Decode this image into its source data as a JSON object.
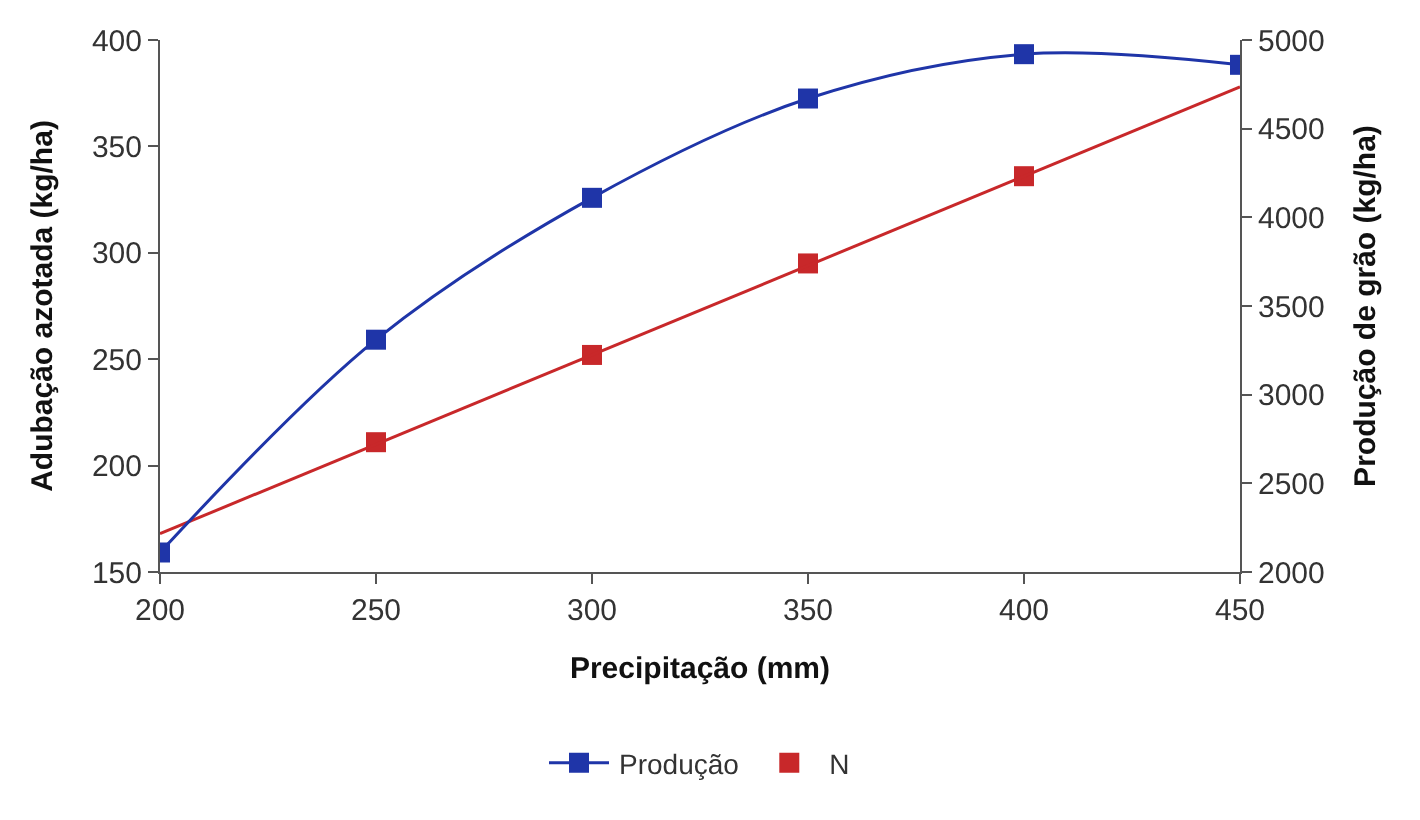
{
  "chart_data": {
    "type": "line",
    "xlabel": "Precipitação (mm)",
    "ylabel": "Adubação azotada (kg/ha)",
    "y2label": "Produção de grão (kg/ha)",
    "xlim": [
      200,
      450
    ],
    "xticks": [
      200,
      250,
      300,
      350,
      400,
      450
    ],
    "ylim": [
      150,
      400
    ],
    "yticks": [
      150,
      200,
      250,
      300,
      350,
      400
    ],
    "y2lim": [
      2000,
      5000
    ],
    "y2ticks": [
      2000,
      2500,
      3000,
      3500,
      4000,
      4500,
      5000
    ],
    "legend": "bottom",
    "marker": "square",
    "line_style": "solid",
    "series": [
      {
        "name": "Produção",
        "color": "#1f35a8",
        "axis": "y2",
        "x": [
          200,
          250,
          300,
          350,
          400,
          450
        ],
        "values": [
          2110,
          3310,
          4110,
          4670,
          4920,
          4860
        ]
      },
      {
        "name": "N",
        "color": "#c8282a",
        "type": "scatter",
        "x": [
          250,
          300,
          350,
          400
        ],
        "values": [
          211,
          252,
          295,
          336
        ]
      },
      {
        "color": "#c8282a",
        "marker": "none",
        "x": [
          200,
          450
        ],
        "values": [
          168,
          378
        ]
      }
    ]
  }
}
